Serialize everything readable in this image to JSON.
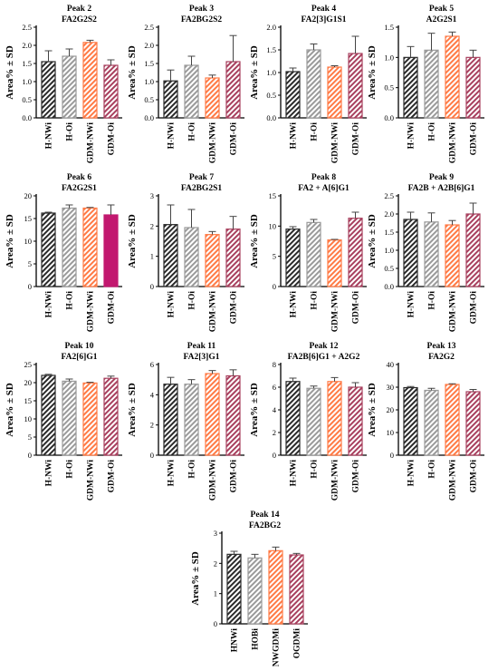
{
  "figure": {
    "ylabel": "Area% ± SD",
    "groups": [
      "H-NWi",
      "H-Oi",
      "GDM-NWi",
      "GDM-Oi"
    ],
    "groups_last": [
      "HNWi",
      "HOBi",
      "NWGDMi",
      "OGDMi"
    ],
    "colors": {
      "H-NWi": "#2a2a2a",
      "H-Oi": "#9a9a9a",
      "GDM-NWi": "#ff7a45",
      "GDM-Oi": "#a8405e",
      "GDM-Oi-peak6": "#c2186f"
    }
  },
  "chart_data": [
    {
      "type": "bar",
      "peak": "Peak 2",
      "glycan": "FA2G2S2",
      "ylabel": "Area% ± SD",
      "ylim": [
        0,
        2.5
      ],
      "ticks": [
        "0.0",
        "0.5",
        "1.0",
        "1.5",
        "2.0",
        "2.5"
      ],
      "categories": [
        "H-NWi",
        "H-Oi",
        "GDM-NWi",
        "GDM-Oi"
      ],
      "values": [
        1.55,
        1.7,
        2.08,
        1.45
      ],
      "errors": [
        0.3,
        0.2,
        0.06,
        0.15
      ]
    },
    {
      "type": "bar",
      "peak": "Peak 3",
      "glycan": "FA2BG2S2",
      "ylabel": "Area% ± SD",
      "ylim": [
        0,
        2.5
      ],
      "ticks": [
        "0.0",
        "0.5",
        "1.0",
        "1.5",
        "2.0",
        "2.5"
      ],
      "categories": [
        "H-NWi",
        "H-Oi",
        "GDM-NWi",
        "GDM-Oi"
      ],
      "values": [
        1.02,
        1.45,
        1.1,
        1.55
      ],
      "errors": [
        0.3,
        0.25,
        0.08,
        0.72
      ]
    },
    {
      "type": "bar",
      "peak": "Peak 4",
      "glycan": "FA2[3]G1S1",
      "ylabel": "Area% ± SD",
      "ylim": [
        0,
        2.0
      ],
      "ticks": [
        "0.0",
        "0.5",
        "1.0",
        "1.5",
        "2.0"
      ],
      "categories": [
        "H-NWi",
        "H-Oi",
        "GDM-NWi",
        "GDM-Oi"
      ],
      "values": [
        1.02,
        1.5,
        1.12,
        1.42
      ],
      "errors": [
        0.08,
        0.13,
        0.03,
        0.38
      ]
    },
    {
      "type": "bar",
      "peak": "Peak 5",
      "glycan": "A2G2S1",
      "ylabel": "Area% ± SD",
      "ylim": [
        0,
        1.5
      ],
      "ticks": [
        "0.0",
        "0.5",
        "1.0",
        "1.5"
      ],
      "categories": [
        "H-NWi",
        "H-Oi",
        "GDM-NWi",
        "GDM-Oi"
      ],
      "values": [
        1.0,
        1.12,
        1.35,
        1.0
      ],
      "errors": [
        0.18,
        0.28,
        0.07,
        0.12
      ]
    },
    {
      "type": "bar",
      "peak": "Peak 6",
      "glycan": "FA2G2S1",
      "ylabel": "Area% ± SD",
      "ylim": [
        0,
        20
      ],
      "ticks": [
        "0",
        "5",
        "10",
        "15",
        "20"
      ],
      "categories": [
        "H-NWi",
        "H-Oi",
        "GDM-NWi",
        "GDM-Oi"
      ],
      "values": [
        16.2,
        17.3,
        17.3,
        15.8
      ],
      "errors": [
        0.2,
        0.7,
        0.15,
        2.2
      ]
    },
    {
      "type": "bar",
      "peak": "Peak 7",
      "glycan": "FA2BG2S1",
      "ylabel": "Area% ± SD",
      "ylim": [
        0,
        3
      ],
      "ticks": [
        "0",
        "1",
        "2",
        "3"
      ],
      "categories": [
        "H-NWi",
        "H-Oi",
        "GDM-NWi",
        "GDM-Oi"
      ],
      "values": [
        2.05,
        1.95,
        1.72,
        1.9
      ],
      "errors": [
        0.65,
        0.6,
        0.1,
        0.42
      ]
    },
    {
      "type": "bar",
      "peak": "Peak 8",
      "glycan": "FA2 + A[6]G1",
      "ylabel": "Area% ± SD",
      "ylim": [
        0,
        15
      ],
      "ticks": [
        "0",
        "5",
        "10",
        "15"
      ],
      "categories": [
        "H-NWi",
        "H-Oi",
        "GDM-NWi",
        "GDM-Oi"
      ],
      "values": [
        9.5,
        10.6,
        7.7,
        11.3
      ],
      "errors": [
        0.4,
        0.5,
        0.1,
        1.0
      ]
    },
    {
      "type": "bar",
      "peak": "Peak 9",
      "glycan": "FA2B + A2B[6]G1",
      "ylabel": "Area% ± SD",
      "ylim": [
        0,
        2.5
      ],
      "ticks": [
        "0.0",
        "0.5",
        "1.0",
        "1.5",
        "2.0",
        "2.5"
      ],
      "categories": [
        "H-NWi",
        "H-Oi",
        "GDM-NWi",
        "GDM-Oi"
      ],
      "values": [
        1.85,
        1.78,
        1.7,
        2.0
      ],
      "errors": [
        0.2,
        0.25,
        0.12,
        0.3
      ]
    },
    {
      "type": "bar",
      "peak": "Peak 10",
      "glycan": "FA2[6]G1",
      "ylabel": "Area% ± SD",
      "ylim": [
        0,
        25
      ],
      "ticks": [
        "0",
        "5",
        "10",
        "15",
        "20",
        "25"
      ],
      "categories": [
        "H-NWi",
        "H-Oi",
        "GDM-NWi",
        "GDM-Oi"
      ],
      "values": [
        22.0,
        20.4,
        19.9,
        21.2
      ],
      "errors": [
        0.3,
        0.6,
        0.2,
        0.6
      ]
    },
    {
      "type": "bar",
      "peak": "Peak 11",
      "glycan": "FA2[3]G1",
      "ylabel": "Area% ± SD",
      "ylim": [
        0,
        6
      ],
      "ticks": [
        "0",
        "2",
        "4",
        "6"
      ],
      "categories": [
        "H-NWi",
        "H-Oi",
        "GDM-NWi",
        "GDM-Oi"
      ],
      "values": [
        4.7,
        4.7,
        5.4,
        5.25
      ],
      "errors": [
        0.45,
        0.3,
        0.2,
        0.4
      ]
    },
    {
      "type": "bar",
      "peak": "Peak 12",
      "glycan": "FA2B[6]G1 + A2G2",
      "ylabel": "Area% ± SD",
      "ylim": [
        0,
        8
      ],
      "ticks": [
        "0",
        "2",
        "4",
        "6",
        "8"
      ],
      "categories": [
        "H-NWi",
        "H-Oi",
        "GDM-NWi",
        "GDM-Oi"
      ],
      "values": [
        6.5,
        5.9,
        6.5,
        6.0
      ],
      "errors": [
        0.3,
        0.2,
        0.35,
        0.4
      ]
    },
    {
      "type": "bar",
      "peak": "Peak 13",
      "glycan": "FA2G2",
      "ylabel": "Area% ± SD",
      "ylim": [
        0,
        40
      ],
      "ticks": [
        "0",
        "10",
        "20",
        "30",
        "40"
      ],
      "categories": [
        "H-NWi",
        "H-Oi",
        "GDM-NWi",
        "GDM-Oi"
      ],
      "values": [
        29.8,
        28.6,
        31.2,
        28.0
      ],
      "errors": [
        0.5,
        0.9,
        0.3,
        1.0
      ]
    },
    {
      "type": "bar",
      "peak": "Peak 14",
      "glycan": "FA2BG2",
      "ylabel": "Area% ± SD",
      "ylim": [
        0,
        3
      ],
      "ticks": [
        "0",
        "1",
        "2",
        "3"
      ],
      "categories": [
        "HNWi",
        "HOBi",
        "NWGDMi",
        "OGDMi"
      ],
      "values": [
        2.3,
        2.18,
        2.42,
        2.28
      ],
      "errors": [
        0.1,
        0.12,
        0.12,
        0.05
      ]
    }
  ]
}
